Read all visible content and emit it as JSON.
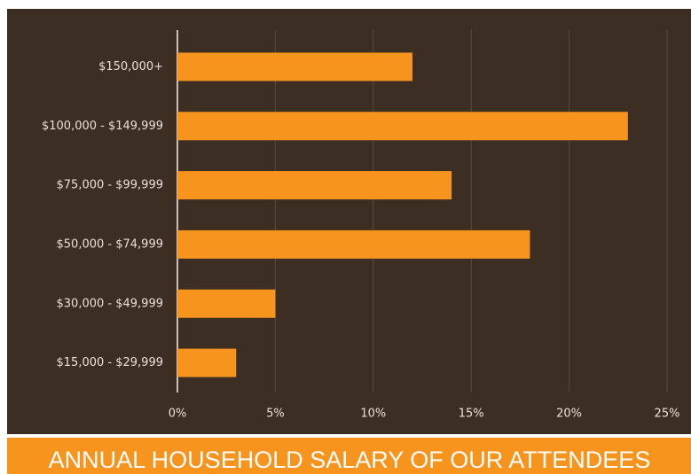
{
  "chart_data": {
    "type": "bar",
    "orientation": "horizontal",
    "title": "ANNUAL HOUSEHOLD SALARY OF OUR ATTENDEES",
    "categories": [
      "$150,000+",
      "$100,000 - $149,999",
      "$75,000 - $99,999",
      "$50,000 - $74,999",
      "$30,000 - $49,999",
      "$15,000 - $29,999"
    ],
    "values": [
      12,
      23,
      14,
      18,
      5,
      3
    ],
    "color": "#f7941d",
    "xlim": [
      0,
      25
    ],
    "xticks": [
      {
        "value": 0,
        "label": "0%"
      },
      {
        "value": 5,
        "label": "5%"
      },
      {
        "value": 10,
        "label": "10%"
      },
      {
        "value": 15,
        "label": "15%"
      },
      {
        "value": 20,
        "label": "20%"
      },
      {
        "value": 25,
        "label": "25%"
      }
    ],
    "grid": true
  }
}
